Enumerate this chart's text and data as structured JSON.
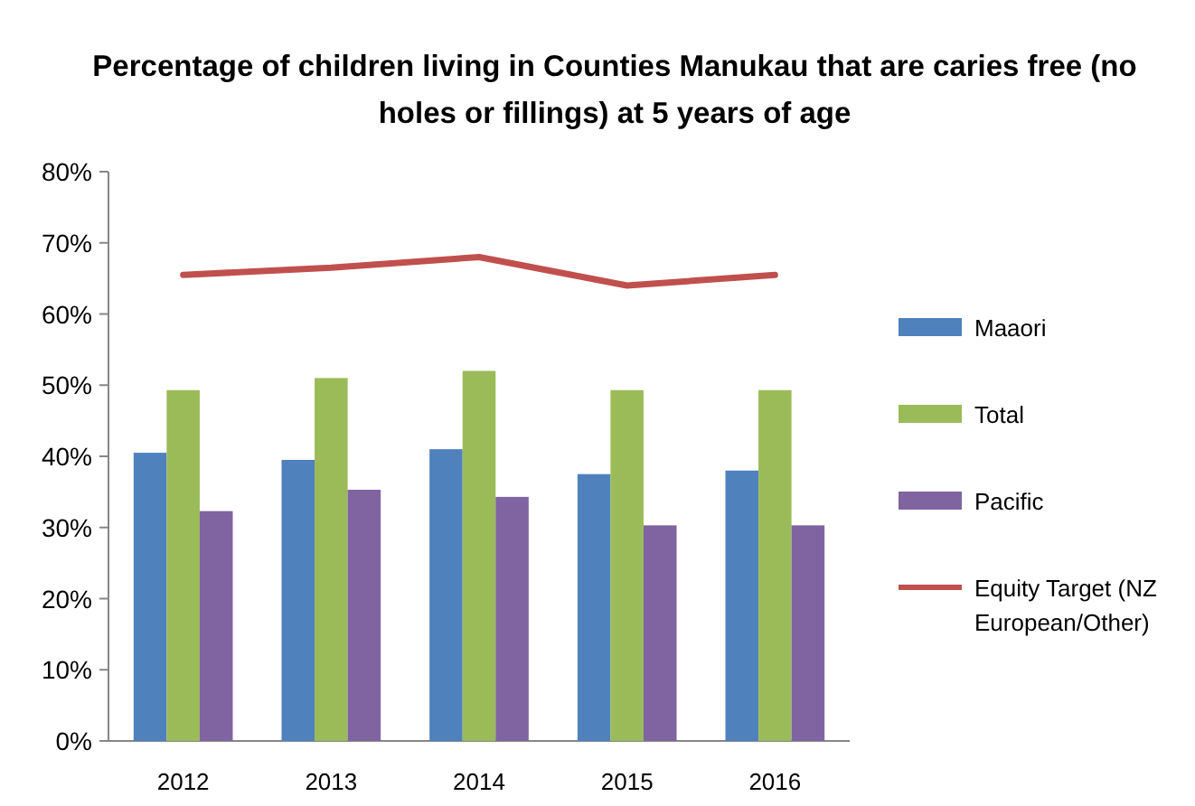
{
  "chart_data": {
    "type": "bar",
    "title": "Percentage of children  living in Counties Manukau that are caries free (no holes or fillings)  at 5 years of age",
    "categories": [
      "2012",
      "2013",
      "2014",
      "2015",
      "2016"
    ],
    "series": [
      {
        "name": "Maaori",
        "color": "#4f81bd",
        "values": [
          40.5,
          39.5,
          41,
          37.5,
          38
        ]
      },
      {
        "name": "Total",
        "color": "#9bbb59",
        "values": [
          49.3,
          51,
          52,
          49.3,
          49.3
        ]
      },
      {
        "name": "Pacific",
        "color": "#8064a2",
        "values": [
          32.3,
          35.3,
          34.3,
          30.3,
          30.3
        ]
      },
      {
        "name": "Equity Target (NZ European/Other)",
        "type": "line",
        "color": "#c0504d",
        "values": [
          65.5,
          66.5,
          68,
          64,
          65.5
        ]
      }
    ],
    "ylim": [
      0,
      80
    ],
    "yticks": [
      {
        "value": 0,
        "label": "0%"
      },
      {
        "value": 10,
        "label": "10%"
      },
      {
        "value": 20,
        "label": "20%"
      },
      {
        "value": 30,
        "label": "30%"
      },
      {
        "value": 40,
        "label": "40%"
      },
      {
        "value": 50,
        "label": "50%"
      },
      {
        "value": 60,
        "label": "60%"
      },
      {
        "value": 70,
        "label": "70%"
      },
      {
        "value": 80,
        "label": "80%"
      }
    ],
    "grid": false,
    "legend": "right"
  }
}
